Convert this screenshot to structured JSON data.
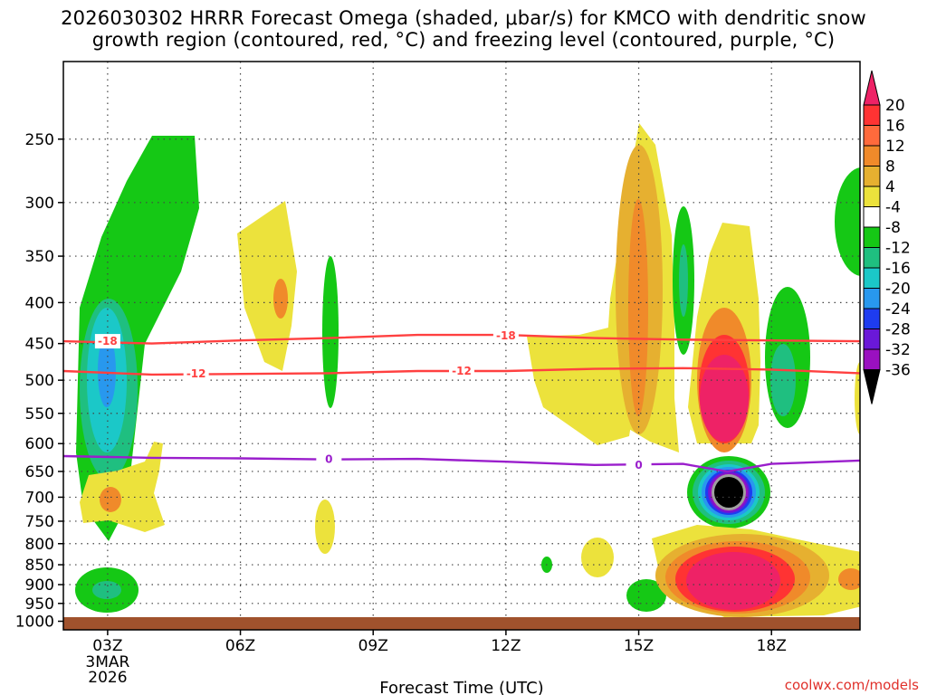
{
  "title": {
    "line1": "2026030302 HRRR Forecast Omega (shaded, μbar/s) for KMCO with dendritic snow",
    "line2": "growth region (contoured, red, °C) and freezing level (contoured, purple, °C)"
  },
  "credit": "coolwx.com/models",
  "chart_data": {
    "type": "heatmap",
    "title": "2026030302 HRRR Forecast Omega (shaded, μbar/s) for KMCO with dendritic snow growth region (contoured, red, °C) and freezing level (contoured, purple, °C)",
    "xlabel": "Forecast Time (UTC)",
    "ylabel": "",
    "x_ticks": [
      "03Z",
      "06Z",
      "09Z",
      "12Z",
      "15Z",
      "18Z"
    ],
    "x_tick_hours": [
      3,
      6,
      9,
      12,
      15,
      18
    ],
    "x_date_label": [
      "3MAR",
      "2026"
    ],
    "xlim_hours": [
      2,
      20
    ],
    "y_ticks": [
      250,
      300,
      350,
      400,
      450,
      500,
      550,
      600,
      650,
      700,
      750,
      800,
      850,
      900,
      950,
      1000
    ],
    "ylim_hpa": [
      200,
      1025
    ],
    "y_scale": "log-pressure",
    "grid": true,
    "colorbar": {
      "levels": [
        20,
        16,
        12,
        8,
        4,
        -4,
        -8,
        -12,
        -16,
        -20,
        -24,
        -28,
        -32,
        -36
      ],
      "colors": [
        "#ee2266",
        "#ff3333",
        "#ff6a3c",
        "#f08a2a",
        "#e6b030",
        "#ece23c",
        "#ffffff",
        "#15c815",
        "#1fbf80",
        "#1bc8c8",
        "#2898ee",
        "#1e3cf0",
        "#6a18d8",
        "#9a10c0",
        "#a0a0a0",
        "#000000"
      ]
    },
    "contours": [
      {
        "name": "dendritic-top",
        "value": -18,
        "label": "-18",
        "color": "#ff4040",
        "x_hours": [
          2,
          4,
          6,
          8,
          10,
          12,
          14,
          16,
          18,
          20
        ],
        "p_hpa": [
          447,
          450,
          446,
          443,
          439,
          439,
          443,
          445,
          446,
          447
        ]
      },
      {
        "name": "dendritic-bottom",
        "value": -12,
        "label": "-12",
        "color": "#ff4040",
        "x_hours": [
          2,
          4,
          6,
          8,
          10,
          12,
          14,
          16,
          18,
          20
        ],
        "p_hpa": [
          487,
          492,
          491,
          490,
          487,
          487,
          484,
          483,
          485,
          490
        ]
      },
      {
        "name": "freezing-level",
        "value": 0,
        "label": "0",
        "color": "#9a1ecc",
        "x_hours": [
          2,
          4,
          6,
          8,
          10,
          12,
          14,
          16,
          17,
          18,
          20
        ],
        "p_hpa": [
          622,
          625,
          626,
          628,
          627,
          632,
          638,
          636,
          650,
          636,
          630
        ]
      }
    ],
    "contour_labels": [
      {
        "text": "-18",
        "hour": 3,
        "p": 447,
        "color": "#ff4040"
      },
      {
        "text": "-18",
        "hour": 12,
        "p": 440,
        "color": "#ff4040"
      },
      {
        "text": "-12",
        "hour": 5,
        "p": 491,
        "color": "#ff4040"
      },
      {
        "text": "-12",
        "hour": 11,
        "p": 487,
        "color": "#ff4040"
      },
      {
        "text": "0",
        "hour": 8,
        "p": 628,
        "color": "#9a1ecc"
      },
      {
        "text": "0",
        "hour": 15,
        "p": 638,
        "color": "#9a1ecc"
      }
    ],
    "features": [
      {
        "name": "upper-sink-early",
        "hour": 3.3,
        "from_hpa": 255,
        "to_hpa": 620,
        "peak": -16
      },
      {
        "name": "low-sink-03z",
        "hour": 3.0,
        "from_hpa": 870,
        "to_hpa": 1000,
        "peak": -12
      },
      {
        "name": "mid-lift-06z",
        "hour": 6.8,
        "from_hpa": 310,
        "to_hpa": 490,
        "peak": 8
      },
      {
        "name": "low-lift-03z",
        "hour": 3.2,
        "from_hpa": 650,
        "to_hpa": 780,
        "peak": 8
      },
      {
        "name": "upper-lift-15z",
        "hour": 15.0,
        "from_hpa": 245,
        "to_hpa": 620,
        "peak": 12
      },
      {
        "name": "core-lift-17z",
        "hour": 17.0,
        "from_hpa": 340,
        "to_hpa": 610,
        "peak": 20
      },
      {
        "name": "strong-sink-17z",
        "hour": 17.0,
        "from_hpa": 650,
        "to_hpa": 775,
        "peak": -36
      },
      {
        "name": "low-lift-17z",
        "hour": 17.2,
        "from_hpa": 780,
        "to_hpa": 990,
        "peak": 20
      }
    ]
  }
}
